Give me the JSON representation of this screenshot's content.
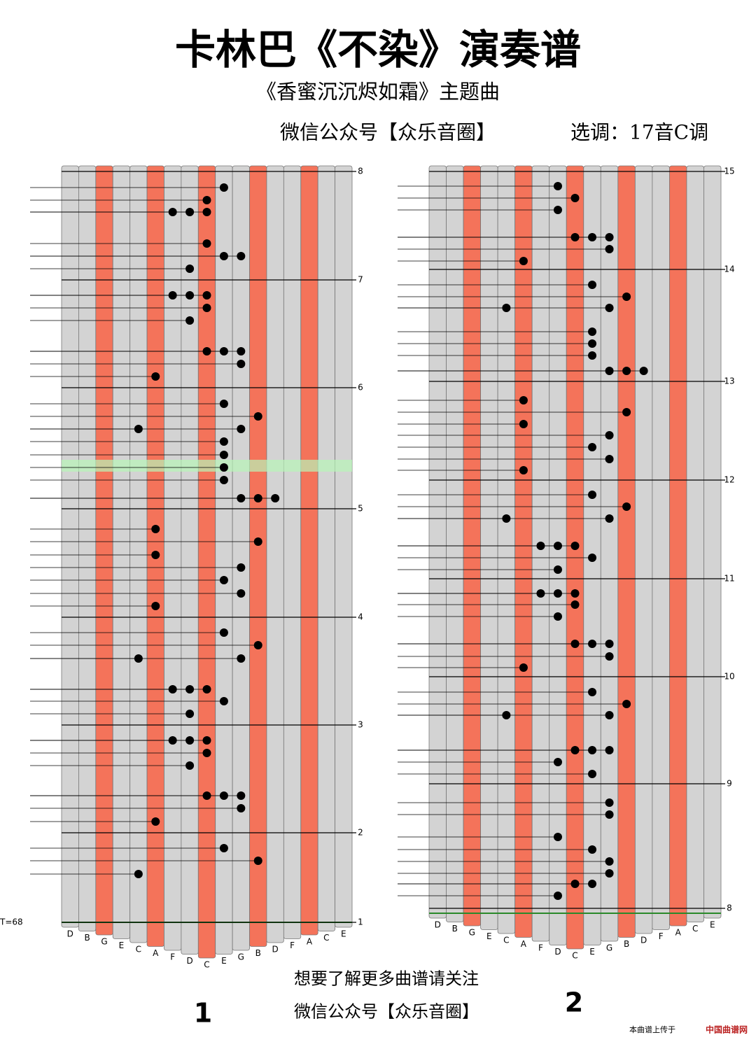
{
  "header": {
    "title": "卡林巴《不染》演奏谱",
    "subtitle": "《香蜜沉沉烬如霜》主题曲",
    "info": "微信公众号【众乐音圈】",
    "key": "选调：17音C调"
  },
  "panels": [
    {
      "measures": [
        "8",
        "7",
        "6",
        "5",
        "4",
        "3",
        "2",
        "1"
      ],
      "keys": [
        "D",
        "B",
        "G",
        "E",
        "C",
        "A",
        "F",
        "D",
        "C",
        "E",
        "G",
        "B",
        "D",
        "F",
        "A",
        "C",
        "E"
      ],
      "tempo": "T=68",
      "page_number": "1"
    },
    {
      "measures": [
        "15",
        "14",
        "13",
        "12",
        "11",
        "10",
        "9",
        "8"
      ],
      "keys": [
        "D",
        "B",
        "G",
        "E",
        "C",
        "A",
        "F",
        "D",
        "C",
        "E",
        "G",
        "B",
        "D",
        "F",
        "A",
        "C",
        "E"
      ],
      "page_number": "2"
    }
  ],
  "footer": {
    "line1": "想要了解更多曲谱请关注",
    "line2": "微信公众号【众乐音圈】",
    "credit": "本曲谱上传于",
    "site": "中国曲谱网"
  }
}
